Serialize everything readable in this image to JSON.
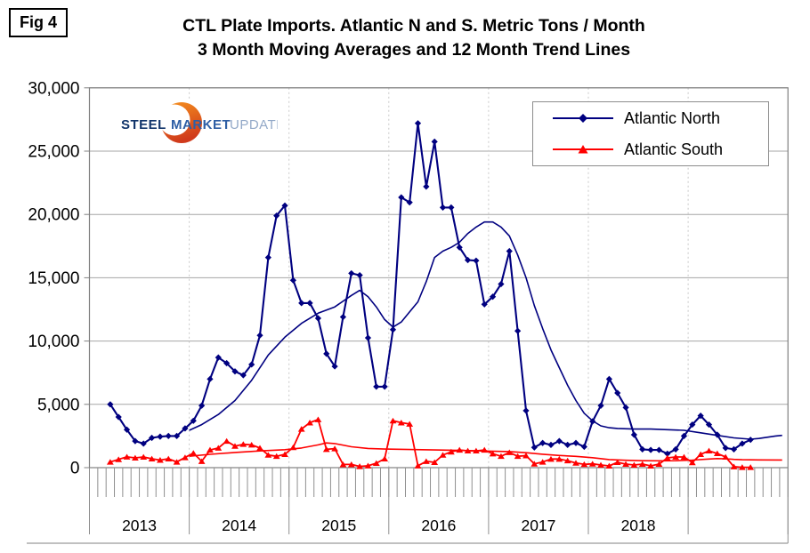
{
  "figure_label": "Fig 4",
  "title": {
    "line1": "CTL Plate Imports. Atlantic N and S. Metric Tons / Month",
    "line2": "3 Month Moving Averages and 12 Month Trend Lines"
  },
  "logo": {
    "word1": "STEEL",
    "word2": "MARKET",
    "word3": "UPDATE",
    "word1_color": "#12356B",
    "word2_color": "#2F5FA5",
    "word3_color": "#93A9C8",
    "crescent_color_top": "#F6921E",
    "crescent_color_bottom": "#D03A1B"
  },
  "legend": {
    "items": [
      {
        "label": "Atlantic North",
        "color": "#000080",
        "marker": "diamond"
      },
      {
        "label": "Atlantic South",
        "color": "#FF0000",
        "marker": "triangle"
      }
    ]
  },
  "colors": {
    "atlantic_north": "#000080",
    "atlantic_south": "#FF0000",
    "gridline": "#a6a6a6",
    "axis": "#808080",
    "year_divider_dash": "#c9c9c9",
    "tick": "#8f8f8f",
    "text": "#000000"
  },
  "chart_data": {
    "type": "line",
    "title": "CTL Plate Imports. Atlantic N and S. Metric Tons / Month — 3 Month Moving Averages and 12 Month Trend Lines",
    "ylim": [
      0,
      30000
    ],
    "y_step": 5000,
    "y_tick_labels": [
      "30,000",
      "25,000",
      "20,000",
      "15,000",
      "10,000",
      "5,000",
      "0"
    ],
    "x_year_labels": [
      "2013",
      "2014",
      "2015",
      "2016",
      "2017",
      "2018",
      ""
    ],
    "x_axis_note": "monthly ticks Jan 2013 through Dec 2019; last partial year (2019) unlabeled",
    "grid": "horizontal solid every 5000; dashed vertical at year boundaries",
    "legend_position": "top-right inside plot",
    "series": [
      {
        "name": "Atlantic North",
        "role": "3 month moving average",
        "marker": "diamond",
        "color": "#000080",
        "start_month_index": 2,
        "start_month": "2013-03",
        "values": [
          5000,
          4000,
          3000,
          2100,
          1900,
          2350,
          2450,
          2500,
          2500,
          3100,
          3700,
          4900,
          7000,
          8700,
          8250,
          7600,
          7300,
          8150,
          10450,
          16600,
          19900,
          20700,
          14800,
          13000,
          13000,
          11800,
          9000,
          8000,
          11900,
          15350,
          15200,
          10250,
          6400,
          6400,
          10900,
          21350,
          20950,
          27200,
          22200,
          25750,
          20550,
          20550,
          17400,
          16400,
          16350,
          12900,
          13500,
          14500,
          17100,
          10800,
          4500,
          1600,
          1950,
          1800,
          2100,
          1800,
          1950,
          1650,
          3650,
          4900,
          7000,
          5900,
          4750,
          2600,
          1450,
          1400,
          1400,
          1100,
          1450,
          2500,
          3400,
          4100,
          3400,
          2600,
          1550,
          1450,
          1900,
          2200
        ]
      },
      {
        "name": "Atlantic South",
        "role": "3 month moving average",
        "marker": "triangle",
        "color": "#FF0000",
        "start_month_index": 2,
        "start_month": "2013-03",
        "values": [
          450,
          650,
          850,
          770,
          840,
          700,
          600,
          700,
          450,
          800,
          1150,
          500,
          1400,
          1550,
          2100,
          1700,
          1850,
          1800,
          1550,
          1000,
          900,
          1050,
          1600,
          3050,
          3550,
          3800,
          1450,
          1500,
          250,
          250,
          100,
          150,
          350,
          700,
          3700,
          3550,
          3450,
          150,
          500,
          420,
          1000,
          1250,
          1400,
          1330,
          1330,
          1400,
          1100,
          900,
          1200,
          900,
          950,
          300,
          450,
          680,
          680,
          550,
          370,
          260,
          300,
          210,
          140,
          420,
          280,
          210,
          280,
          140,
          280,
          770,
          840,
          840,
          400,
          1050,
          1330,
          1120,
          840,
          80,
          30,
          30
        ]
      },
      {
        "name": "Atlantic North 12 month trend",
        "role": "trend line",
        "marker": "none",
        "color": "#000080",
        "points": [
          [
            11.5,
            2950
          ],
          [
            13,
            3400
          ],
          [
            15,
            4200
          ],
          [
            17,
            5300
          ],
          [
            19,
            6900
          ],
          [
            21,
            8900
          ],
          [
            23,
            10300
          ],
          [
            25,
            11400
          ],
          [
            27,
            12200
          ],
          [
            29,
            12700
          ],
          [
            31,
            13600
          ],
          [
            32,
            14000
          ],
          [
            33,
            13500
          ],
          [
            34,
            12700
          ],
          [
            35,
            11700
          ],
          [
            36,
            11100
          ],
          [
            37,
            11500
          ],
          [
            38,
            12300
          ],
          [
            39,
            13100
          ],
          [
            40,
            14700
          ],
          [
            41,
            16600
          ],
          [
            42,
            17100
          ],
          [
            43,
            17400
          ],
          [
            44,
            17800
          ],
          [
            45,
            18500
          ],
          [
            46,
            19000
          ],
          [
            47,
            19400
          ],
          [
            48,
            19400
          ],
          [
            49,
            19000
          ],
          [
            50,
            18300
          ],
          [
            51,
            16800
          ],
          [
            52,
            15000
          ],
          [
            53,
            12800
          ],
          [
            54,
            11000
          ],
          [
            55,
            9300
          ],
          [
            56,
            7900
          ],
          [
            57,
            6500
          ],
          [
            58,
            5300
          ],
          [
            59,
            4300
          ],
          [
            60,
            3700
          ],
          [
            61,
            3300
          ],
          [
            62,
            3150
          ],
          [
            63,
            3100
          ],
          [
            65,
            3050
          ],
          [
            67,
            3050
          ],
          [
            69,
            3000
          ],
          [
            71,
            2950
          ],
          [
            73,
            2750
          ],
          [
            75,
            2550
          ],
          [
            77,
            2350
          ],
          [
            79,
            2250
          ],
          [
            80,
            2300
          ],
          [
            81,
            2400
          ],
          [
            82,
            2500
          ],
          [
            82.8,
            2550
          ]
        ]
      },
      {
        "name": "Atlantic South 12 month trend",
        "role": "trend line",
        "marker": "none",
        "color": "#FF0000",
        "points": [
          [
            11.5,
            900
          ],
          [
            14,
            1050
          ],
          [
            17,
            1200
          ],
          [
            20,
            1320
          ],
          [
            23,
            1420
          ],
          [
            25,
            1550
          ],
          [
            27,
            1800
          ],
          [
            28,
            1950
          ],
          [
            29,
            1900
          ],
          [
            31,
            1650
          ],
          [
            33,
            1520
          ],
          [
            35,
            1470
          ],
          [
            38,
            1430
          ],
          [
            41,
            1400
          ],
          [
            44,
            1360
          ],
          [
            47,
            1310
          ],
          [
            50,
            1270
          ],
          [
            52,
            1180
          ],
          [
            54,
            1060
          ],
          [
            56,
            960
          ],
          [
            58,
            890
          ],
          [
            60,
            790
          ],
          [
            62,
            640
          ],
          [
            64,
            580
          ],
          [
            66,
            545
          ],
          [
            68,
            540
          ],
          [
            70,
            545
          ],
          [
            72,
            600
          ],
          [
            74,
            680
          ],
          [
            75,
            715
          ],
          [
            76,
            700
          ],
          [
            77,
            650
          ],
          [
            78,
            625
          ],
          [
            80,
            610
          ],
          [
            82.8,
            605
          ]
        ]
      }
    ]
  }
}
